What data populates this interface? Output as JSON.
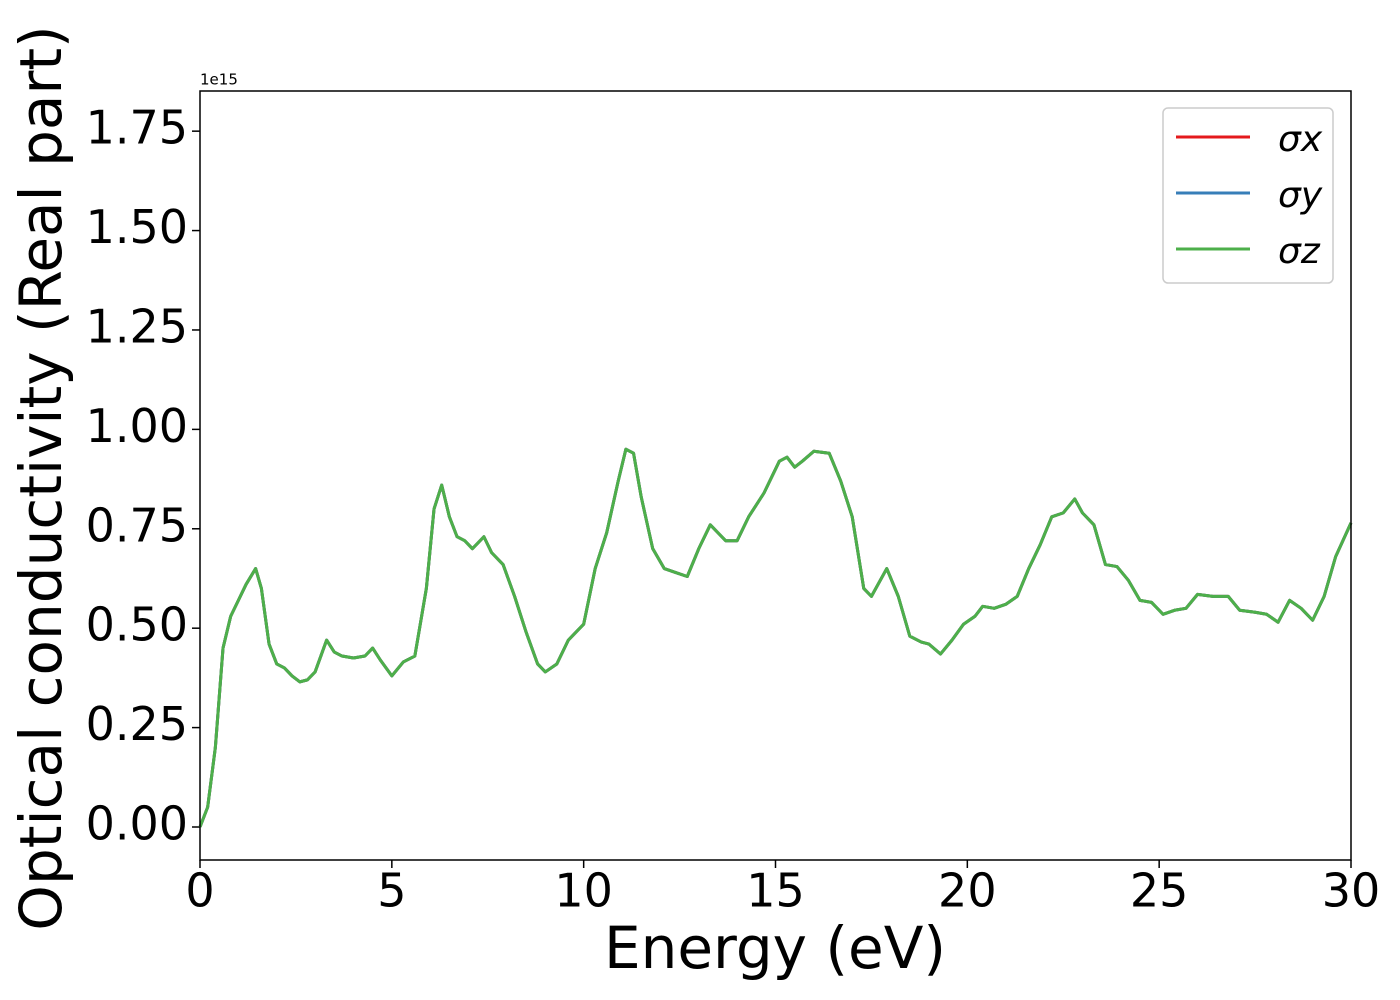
{
  "chart_data": {
    "type": "line",
    "xlabel": "Energy (eV)",
    "ylabel": "Optical conductivity (Real part)",
    "y_offset_label": "1e15",
    "x": [
      0,
      0.2,
      0.4,
      0.6,
      0.8,
      1.0,
      1.2,
      1.45,
      1.6,
      1.8,
      2.0,
      2.2,
      2.4,
      2.6,
      2.8,
      3.0,
      3.3,
      3.5,
      3.7,
      4.0,
      4.3,
      4.5,
      4.7,
      5.0,
      5.3,
      5.6,
      5.9,
      6.1,
      6.3,
      6.5,
      6.7,
      6.9,
      7.1,
      7.4,
      7.6,
      7.9,
      8.2,
      8.5,
      8.8,
      9.0,
      9.3,
      9.6,
      10.0,
      10.3,
      10.6,
      10.9,
      11.1,
      11.3,
      11.5,
      11.8,
      12.1,
      12.4,
      12.7,
      13.0,
      13.3,
      13.5,
      13.7,
      14.0,
      14.3,
      14.7,
      15.1,
      15.3,
      15.5,
      15.7,
      16.0,
      16.4,
      16.7,
      17.0,
      17.3,
      17.5,
      17.9,
      18.2,
      18.5,
      18.8,
      19.0,
      19.3,
      19.6,
      19.9,
      20.2,
      20.4,
      20.7,
      21.0,
      21.3,
      21.6,
      21.9,
      22.2,
      22.5,
      22.8,
      23.0,
      23.3,
      23.6,
      23.9,
      24.2,
      24.5,
      24.8,
      25.1,
      25.4,
      25.7,
      26.0,
      26.4,
      26.8,
      27.1,
      27.5,
      27.8,
      28.1,
      28.4,
      28.7,
      29.0,
      29.3,
      29.6,
      30.0
    ],
    "series": [
      {
        "name": "σx",
        "color": "#e41a1c",
        "values": [
          0,
          0.05,
          0.2,
          0.45,
          0.53,
          0.57,
          0.61,
          0.65,
          0.6,
          0.46,
          0.41,
          0.4,
          0.38,
          0.365,
          0.37,
          0.39,
          0.47,
          0.44,
          0.43,
          0.425,
          0.43,
          0.45,
          0.42,
          0.38,
          0.415,
          0.43,
          0.6,
          0.8,
          0.86,
          0.78,
          0.73,
          0.72,
          0.7,
          0.73,
          0.69,
          0.66,
          0.58,
          0.49,
          0.41,
          0.39,
          0.41,
          0.47,
          0.51,
          0.65,
          0.74,
          0.87,
          0.95,
          0.94,
          0.83,
          0.7,
          0.65,
          0.64,
          0.63,
          0.7,
          0.76,
          0.74,
          0.72,
          0.72,
          0.78,
          0.84,
          0.92,
          0.93,
          0.905,
          0.92,
          0.945,
          0.94,
          0.87,
          0.78,
          0.6,
          0.58,
          0.65,
          0.58,
          0.48,
          0.465,
          0.46,
          0.435,
          0.47,
          0.51,
          0.53,
          0.555,
          0.55,
          0.56,
          0.58,
          0.65,
          0.71,
          0.78,
          0.79,
          0.825,
          0.79,
          0.76,
          0.66,
          0.655,
          0.62,
          0.57,
          0.565,
          0.535,
          0.545,
          0.55,
          0.585,
          0.58,
          0.58,
          0.545,
          0.54,
          0.535,
          0.515,
          0.57,
          0.55,
          0.52,
          0.58,
          0.68,
          0.765
        ]
      },
      {
        "name": "σy",
        "color": "#377eb8",
        "values": [
          0,
          0.05,
          0.2,
          0.45,
          0.53,
          0.57,
          0.61,
          0.65,
          0.6,
          0.46,
          0.41,
          0.4,
          0.38,
          0.365,
          0.37,
          0.39,
          0.47,
          0.44,
          0.43,
          0.425,
          0.43,
          0.45,
          0.42,
          0.38,
          0.415,
          0.43,
          0.6,
          0.8,
          0.86,
          0.78,
          0.73,
          0.72,
          0.7,
          0.73,
          0.69,
          0.66,
          0.58,
          0.49,
          0.41,
          0.39,
          0.41,
          0.47,
          0.51,
          0.65,
          0.74,
          0.87,
          0.95,
          0.94,
          0.83,
          0.7,
          0.65,
          0.64,
          0.63,
          0.7,
          0.76,
          0.74,
          0.72,
          0.72,
          0.78,
          0.84,
          0.92,
          0.93,
          0.905,
          0.92,
          0.945,
          0.94,
          0.87,
          0.78,
          0.6,
          0.58,
          0.65,
          0.58,
          0.48,
          0.465,
          0.46,
          0.435,
          0.47,
          0.51,
          0.53,
          0.555,
          0.55,
          0.56,
          0.58,
          0.65,
          0.71,
          0.78,
          0.79,
          0.825,
          0.79,
          0.76,
          0.66,
          0.655,
          0.62,
          0.57,
          0.565,
          0.535,
          0.545,
          0.55,
          0.585,
          0.58,
          0.58,
          0.545,
          0.54,
          0.535,
          0.515,
          0.57,
          0.55,
          0.52,
          0.58,
          0.68,
          0.765
        ]
      },
      {
        "name": "σz",
        "color": "#4daf4a",
        "values": [
          0,
          0.05,
          0.2,
          0.45,
          0.53,
          0.57,
          0.61,
          0.65,
          0.6,
          0.46,
          0.41,
          0.4,
          0.38,
          0.365,
          0.37,
          0.39,
          0.47,
          0.44,
          0.43,
          0.425,
          0.43,
          0.45,
          0.42,
          0.38,
          0.415,
          0.43,
          0.6,
          0.8,
          0.86,
          0.78,
          0.73,
          0.72,
          0.7,
          0.73,
          0.69,
          0.66,
          0.58,
          0.49,
          0.41,
          0.39,
          0.41,
          0.47,
          0.51,
          0.65,
          0.74,
          0.87,
          0.95,
          0.94,
          0.83,
          0.7,
          0.65,
          0.64,
          0.63,
          0.7,
          0.76,
          0.74,
          0.72,
          0.72,
          0.78,
          0.84,
          0.92,
          0.93,
          0.905,
          0.92,
          0.945,
          0.94,
          0.87,
          0.78,
          0.6,
          0.58,
          0.65,
          0.58,
          0.48,
          0.465,
          0.46,
          0.435,
          0.47,
          0.51,
          0.53,
          0.555,
          0.55,
          0.56,
          0.58,
          0.65,
          0.71,
          0.78,
          0.79,
          0.825,
          0.79,
          0.76,
          0.66,
          0.655,
          0.62,
          0.57,
          0.565,
          0.535,
          0.545,
          0.55,
          0.585,
          0.58,
          0.58,
          0.545,
          0.54,
          0.535,
          0.515,
          0.57,
          0.55,
          0.52,
          0.58,
          0.68,
          0.765
        ]
      }
    ],
    "xlim": [
      0,
      30
    ],
    "xticks": [
      0,
      5,
      10,
      15,
      20,
      25,
      30
    ],
    "ylim": [
      -0.083,
      1.851
    ],
    "yticks": [
      {
        "value": 0,
        "label": "0.00"
      },
      0.25,
      {
        "value": 0.5,
        "label": "0.50"
      },
      0.75,
      {
        "value": 1,
        "label": "1.00"
      },
      1.25,
      {
        "value": 1.5,
        "label": "1.50"
      },
      1.75
    ],
    "grid": false,
    "legend": "upper right"
  }
}
